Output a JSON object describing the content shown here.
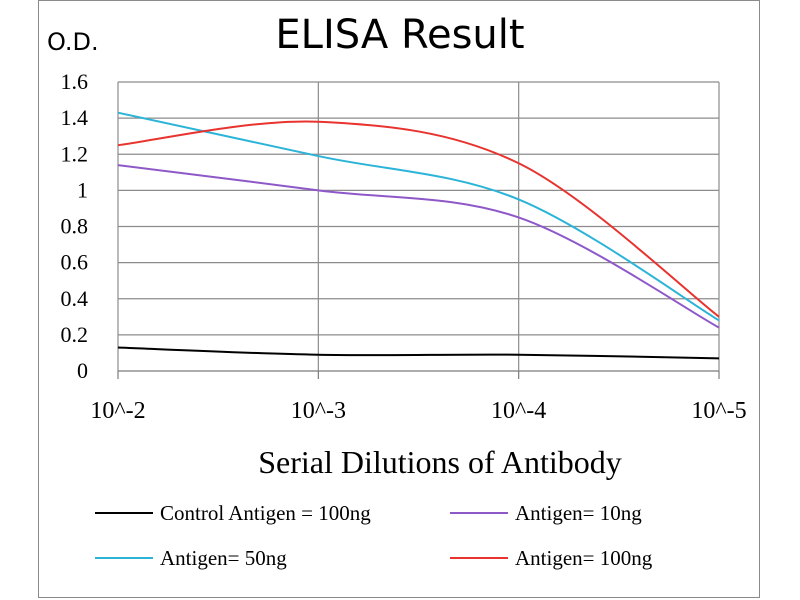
{
  "chart_data": {
    "type": "line",
    "title": "ELISA Result",
    "ylabel": "O.D.",
    "xlabel": "Serial Dilutions  of Antibody",
    "x": [
      "10^-2",
      "10^-3",
      "10^-4",
      "10^-5"
    ],
    "yticks": [
      "0",
      "0.2",
      "0.4",
      "0.6",
      "0.8",
      "1",
      "1.2",
      "1.4",
      "1.6"
    ],
    "ylim": [
      0,
      1.6
    ],
    "grid": true,
    "legend_position": "bottom",
    "series": [
      {
        "name": "Control Antigen = 100ng",
        "color": "#000000",
        "values": [
          0.13,
          0.09,
          0.09,
          0.07
        ]
      },
      {
        "name": "Antigen= 10ng",
        "color": "#8e58c9",
        "values": [
          1.14,
          1.0,
          0.85,
          0.24
        ]
      },
      {
        "name": "Antigen= 50ng",
        "color": "#2bb4d8",
        "values": [
          1.43,
          1.19,
          0.95,
          0.28
        ]
      },
      {
        "name": "Antigen= 100ng",
        "color": "#e8332e",
        "values": [
          1.25,
          1.38,
          1.15,
          0.3
        ]
      }
    ]
  }
}
